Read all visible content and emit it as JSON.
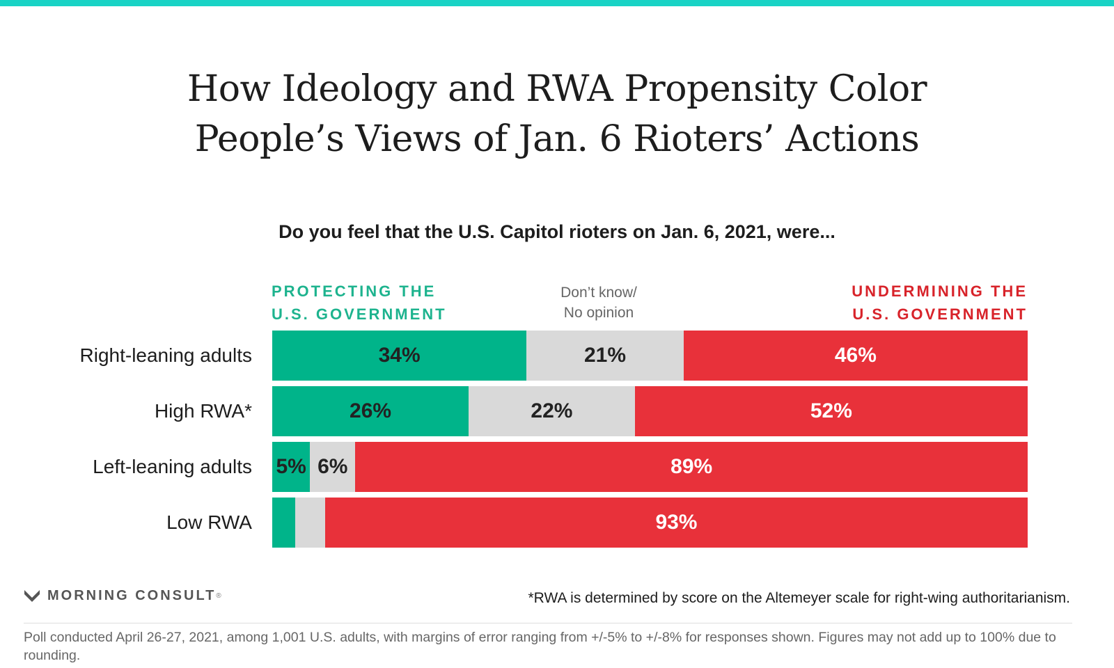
{
  "title_lines": [
    "How Ideology and RWA Propensity Color",
    "People’s Views of Jan. 6 Rioters’ Actions"
  ],
  "question": "Do you feel that the U.S. Capitol rioters on Jan. 6, 2021, were...",
  "legend": {
    "protecting": [
      "PROTECTING THE",
      "U.S. GOVERNMENT"
    ],
    "dont_know": [
      "Don’t know/",
      "No opinion"
    ],
    "undermining": [
      "UNDERMINING THE",
      "U.S. GOVERNMENT"
    ]
  },
  "colors": {
    "protecting": "#00b48a",
    "dont_know": "#d9d9d9",
    "undermining": "#e8313a",
    "top_bar": "#19d3c5"
  },
  "chart_data": {
    "type": "bar",
    "orientation": "horizontal-stacked-100",
    "categories": [
      "Right-leaning adults",
      "High RWA*",
      "Left-leaning adults",
      "Low RWA"
    ],
    "series": [
      {
        "name": "Protecting the U.S. government",
        "values": [
          34,
          26,
          5,
          3
        ],
        "labels": [
          "34%",
          "26%",
          "5%",
          ""
        ]
      },
      {
        "name": "Don’t know/No opinion",
        "values": [
          21,
          22,
          6,
          4
        ],
        "labels": [
          "21%",
          "22%",
          "6%",
          ""
        ]
      },
      {
        "name": "Undermining the U.S. government",
        "values": [
          46,
          52,
          89,
          93
        ],
        "labels": [
          "46%",
          "52%",
          "89%",
          "93%"
        ]
      }
    ],
    "xlim": [
      0,
      100
    ]
  },
  "footnote": "*RWA is determined by score on the Altemeyer scale for right-wing authoritarianism.",
  "logo": {
    "text": "MORNING CONSULT",
    "mark": "®"
  },
  "source": "Poll conducted April 26-27, 2021, among 1,001 U.S. adults, with margins of error ranging from +/-5% to +/-8% for responses shown. Figures may not add up to 100% due to rounding."
}
